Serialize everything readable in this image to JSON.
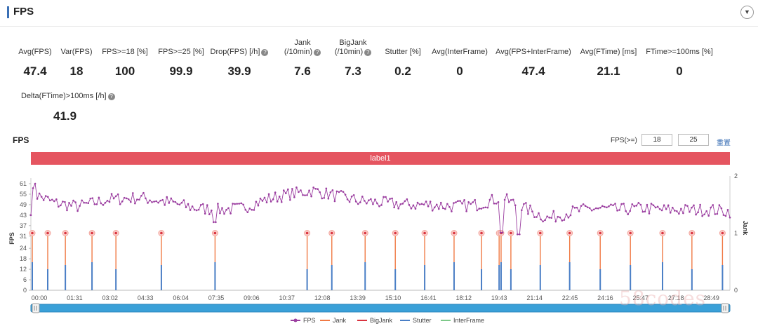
{
  "header": {
    "title": "FPS"
  },
  "stats": [
    {
      "label": "Avg(FPS)",
      "value": "47.4"
    },
    {
      "label": "Var(FPS)",
      "value": "18"
    },
    {
      "label": "FPS>=18 [%]",
      "value": "100"
    },
    {
      "label": "FPS>=25 [%]",
      "value": "99.9"
    },
    {
      "label": "Drop(FPS) [/h]",
      "value": "39.9"
    },
    {
      "label": "Jank",
      "label2": "(/10min)",
      "value": "7.6"
    },
    {
      "label": "BigJank",
      "label2": "(/10min)",
      "value": "7.3"
    },
    {
      "label": "Stutter [%]",
      "value": "0.2"
    },
    {
      "label": "Avg(InterFrame)",
      "value": "0"
    },
    {
      "label": "Avg(FPS+InterFrame)",
      "value": "47.4"
    },
    {
      "label": "Avg(FTime) [ms]",
      "value": "21.1"
    },
    {
      "label": "FTime>=100ms [%]",
      "value": "0"
    },
    {
      "label": "Delta(FTime)>100ms [/h]",
      "value": "41.9"
    }
  ],
  "chart_section": {
    "title": "FPS",
    "threshold_label": "FPS(>=)",
    "threshold1": "18",
    "threshold2": "25",
    "reset_label": "重置",
    "label_bar": "label1"
  },
  "chart_data": {
    "type": "line",
    "title": "",
    "ylabel": "FPS",
    "y2label": "Jank",
    "ylim": [
      0,
      61
    ],
    "y2lim": [
      0,
      2
    ],
    "yticks": [
      "0",
      "6",
      "12",
      "18",
      "24",
      "31",
      "37",
      "43",
      "49",
      "55",
      "61"
    ],
    "y2ticks": [
      "0",
      "1",
      "2"
    ],
    "xticks": [
      "00:00",
      "01:31",
      "03:02",
      "04:33",
      "06:04",
      "07:35",
      "09:06",
      "10:37",
      "12:08",
      "13:39",
      "15:10",
      "16:41",
      "18:12",
      "19:43",
      "21:14",
      "22:45",
      "24:16",
      "25:47",
      "27:18",
      "28:49"
    ],
    "fps_series": {
      "name": "FPS",
      "x_range_seconds": [
        0,
        1784
      ],
      "samples": 330,
      "trend_seconds": [
        0,
        60,
        120,
        200,
        280,
        360,
        420,
        480,
        540,
        600,
        660,
        720,
        780,
        840,
        900,
        960,
        1020,
        1080,
        1140,
        1200,
        1260,
        1320,
        1380,
        1440,
        1500,
        1560,
        1620,
        1680,
        1740,
        1784
      ],
      "trend_values": [
        56,
        50,
        48,
        52,
        53,
        50,
        47,
        46,
        47,
        52,
        55,
        57,
        54,
        51,
        50,
        49,
        49,
        48,
        49,
        53,
        47,
        41,
        45,
        47,
        46,
        47,
        46,
        46,
        46,
        45
      ],
      "dips_seconds": [
        470,
        1200,
        1245
      ],
      "dips_values": [
        39,
        33,
        32
      ]
    },
    "jank_events_seconds": [
      0,
      43,
      88,
      156,
      217,
      333,
      470,
      705,
      768,
      853,
      930,
      1005,
      1080,
      1150,
      1195,
      1200,
      1225,
      1300,
      1375,
      1453,
      1530,
      1612,
      1687,
      1765
    ],
    "legend": [
      "FPS",
      "Jank",
      "BigJank",
      "Stutter",
      "InterFrame"
    ],
    "colors": {
      "fps": "#9b3ea0",
      "jank": "#f07a45",
      "bigjank": "#d9333f",
      "stutter": "#4a7fc6",
      "interframe": "#7ec98a"
    }
  },
  "watermark": "58codes"
}
